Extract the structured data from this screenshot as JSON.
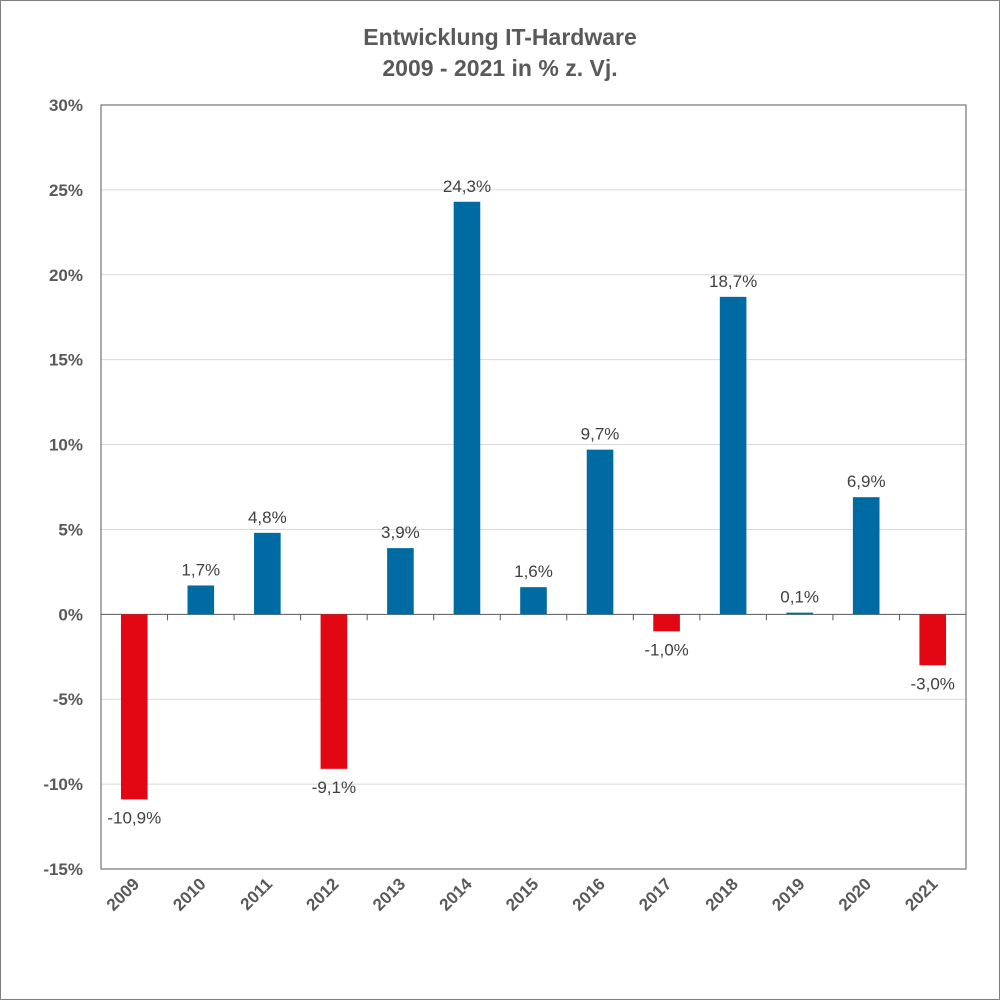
{
  "chart_data": {
    "type": "bar",
    "title": "Entwicklung IT-Hardware",
    "subtitle": "2009 - 2021 in % z. Vj.",
    "xlabel": "",
    "ylabel": "",
    "ylim": [
      -15,
      30
    ],
    "yticks": [
      30,
      25,
      20,
      15,
      10,
      5,
      0,
      -5,
      -10,
      -15
    ],
    "ytick_labels": [
      "30%",
      "25%",
      "20%",
      "15%",
      "10%",
      "5%",
      "0%",
      "-5%",
      "-10%",
      "-15%"
    ],
    "categories": [
      "2009",
      "2010",
      "2011",
      "2012",
      "2013",
      "2014",
      "2015",
      "2016",
      "2017",
      "2018",
      "2019",
      "2020",
      "2021"
    ],
    "values": [
      -10.9,
      1.7,
      4.8,
      -9.1,
      3.9,
      24.3,
      1.6,
      9.7,
      -1.0,
      18.7,
      0.1,
      6.9,
      -3.0
    ],
    "data_labels": [
      "-10,9%",
      "1,7%",
      "4,8%",
      "-9,1%",
      "3,9%",
      "24,3%",
      "1,6%",
      "9,7%",
      "-1,0%",
      "18,7%",
      "0,1%",
      "6,9%",
      "-3,0%"
    ],
    "grid": true,
    "legend": "none",
    "colors": {
      "positive": "#006aa3",
      "negative": "#e30613",
      "grid": "#d9d9d9",
      "axis": "#595959"
    }
  }
}
